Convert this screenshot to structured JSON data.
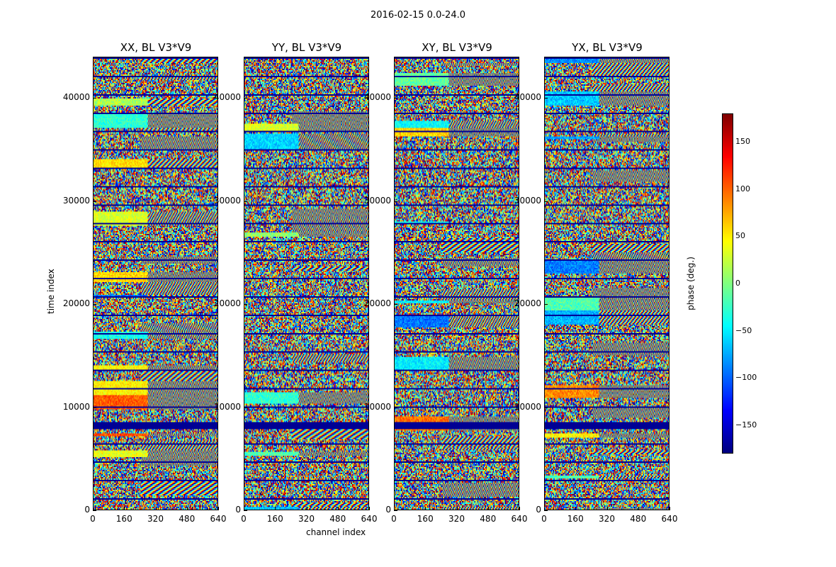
{
  "chart_data": {
    "type": "heatmap",
    "title": "2016-02-15 0.0-24.0",
    "panels": [
      {
        "title": "XX, BL V3*V9",
        "seed": 11
      },
      {
        "title": "YY, BL V3*V9",
        "seed": 23
      },
      {
        "title": "XY, BL V3*V9",
        "seed": 37
      },
      {
        "title": "YX, BL V3*V9",
        "seed": 53
      }
    ],
    "xlabel": "channel index",
    "ylabel": "time index",
    "xlim": [
      0,
      640
    ],
    "ylim": [
      0,
      44000
    ],
    "xticks": [
      "0",
      "160",
      "320",
      "480",
      "640"
    ],
    "yticks": [
      "0",
      "10000",
      "20000",
      "30000",
      "40000"
    ],
    "colorbar": {
      "label": "phase (deg.)",
      "range": [
        -180,
        180
      ],
      "ticks": [
        "150",
        "100",
        "50",
        "0",
        "−50",
        "−100",
        "−150"
      ],
      "colormap": "jet"
    }
  }
}
